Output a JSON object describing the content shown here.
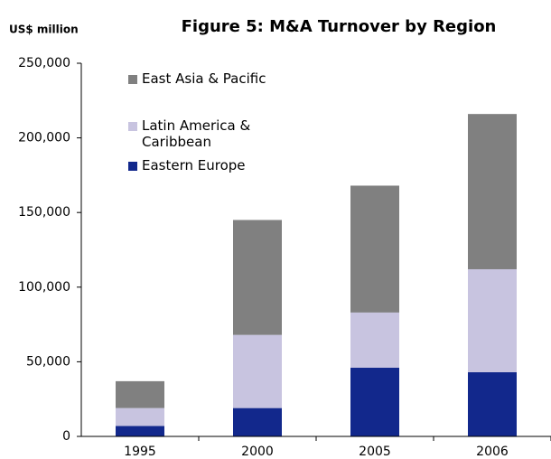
{
  "chart_data": {
    "type": "bar",
    "stacked": true,
    "title": "Figure 5: M&A Turnover by Region",
    "ylabel": "US$ million",
    "categories": [
      "1995",
      "2000",
      "2005",
      "2006"
    ],
    "series": [
      {
        "name": "Eastern Europe",
        "color": "#12288c",
        "values": [
          7000,
          19000,
          46000,
          43000
        ]
      },
      {
        "name": "Latin America & Caribbean",
        "color": "#c8c4e0",
        "values": [
          12000,
          49000,
          37000,
          69000
        ]
      },
      {
        "name": "East Asia & Pacific",
        "color": "#808080",
        "values": [
          18000,
          77000,
          85000,
          104000
        ]
      }
    ],
    "ylim": [
      0,
      250000
    ],
    "yticks": [
      0,
      {
        "value": 50000,
        "label": "50,000"
      },
      {
        "value": 100000,
        "label": "100,000"
      },
      {
        "value": 150000,
        "label": "150,000"
      },
      {
        "value": 200000,
        "label": "200,000"
      },
      {
        "value": 250000,
        "label": "250,000"
      }
    ],
    "grid": false
  }
}
